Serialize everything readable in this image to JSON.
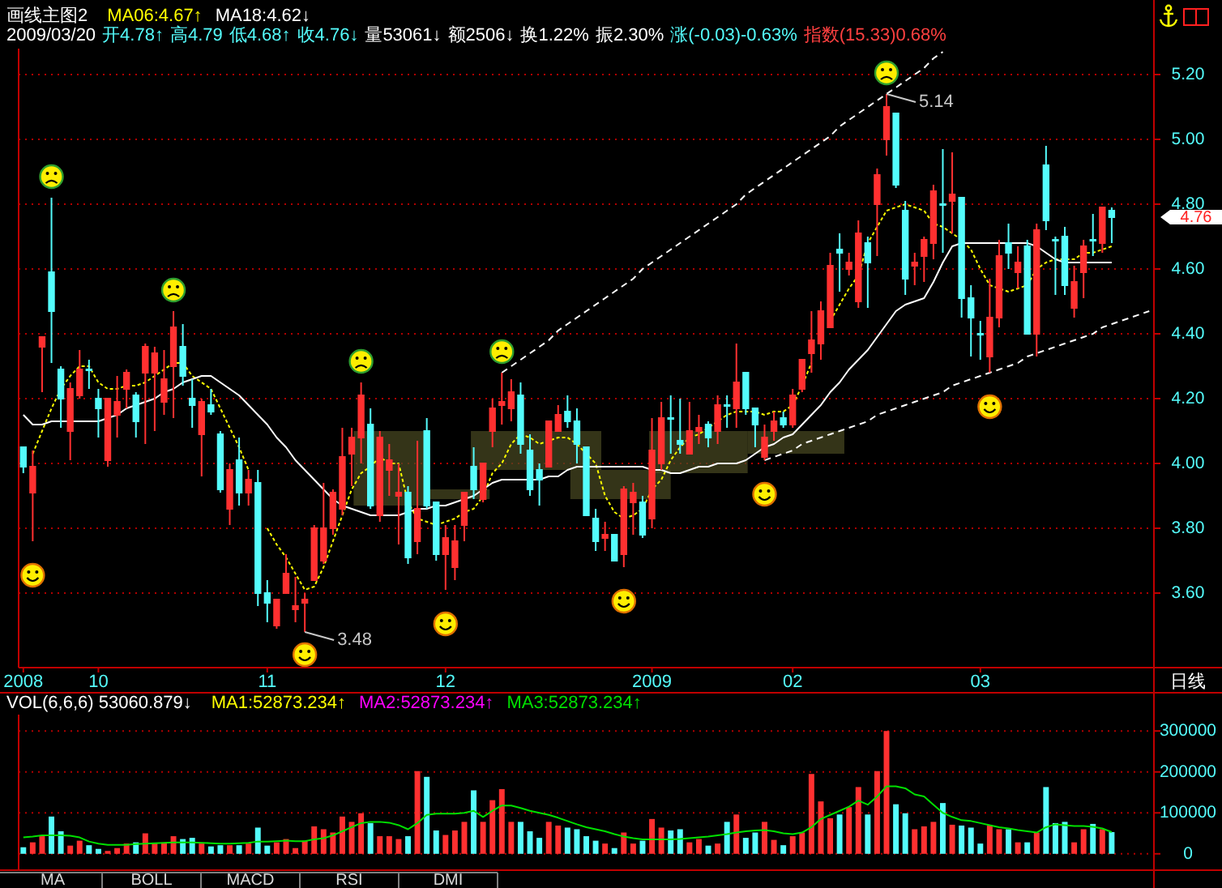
{
  "chart_data": [
    {
      "type": "candlestick",
      "title": "画线主图2",
      "xlabel": "日线",
      "legend": "top left",
      "grid": "y",
      "categories": [
        "2008",
        null,
        null,
        null,
        null,
        null,
        null,
        null,
        "10",
        null,
        null,
        null,
        null,
        null,
        null,
        null,
        null,
        null,
        null,
        null,
        null,
        null,
        null,
        null,
        null,
        null,
        "11",
        null,
        null,
        null,
        null,
        null,
        null,
        null,
        null,
        null,
        null,
        null,
        null,
        null,
        null,
        null,
        null,
        null,
        null,
        "12",
        null,
        null,
        null,
        null,
        null,
        null,
        null,
        null,
        null,
        null,
        null,
        null,
        null,
        null,
        null,
        null,
        null,
        null,
        null,
        null,
        null,
        "2009",
        null,
        null,
        null,
        null,
        null,
        null,
        null,
        null,
        null,
        null,
        null,
        null,
        null,
        null,
        "02",
        null,
        null,
        null,
        null,
        null,
        null,
        null,
        null,
        null,
        null,
        null,
        null,
        null,
        null,
        null,
        null,
        null,
        null,
        null,
        "03",
        null,
        null,
        null,
        null,
        null,
        null,
        null,
        null,
        null,
        null,
        null,
        null,
        null,
        null,
        null,
        null,
        null,
        null
      ],
      "ohlc": [
        [
          4.05,
          4.05,
          3.97,
          3.99
        ],
        [
          3.91,
          4.04,
          3.76,
          3.99
        ],
        [
          4.36,
          4.39,
          4.22,
          4.39
        ],
        [
          4.59,
          4.82,
          4.31,
          4.47
        ],
        [
          4.29,
          4.3,
          4.11,
          4.2
        ],
        [
          4.1,
          4.25,
          4.01,
          4.23
        ],
        [
          4.21,
          4.35,
          4.2,
          4.29
        ],
        [
          4.29,
          4.32,
          4.23,
          4.29
        ],
        [
          4.2,
          4.23,
          4.08,
          4.17
        ],
        [
          4.01,
          4.2,
          3.99,
          4.2
        ],
        [
          4.15,
          4.27,
          4.08,
          4.19
        ],
        [
          4.23,
          4.29,
          4.17,
          4.28
        ],
        [
          4.21,
          4.22,
          4.08,
          4.13
        ],
        [
          4.28,
          4.37,
          4.06,
          4.36
        ],
        [
          4.28,
          4.36,
          4.1,
          4.34
        ],
        [
          4.19,
          4.35,
          4.15,
          4.26
        ],
        [
          4.3,
          4.47,
          4.14,
          4.42
        ],
        [
          4.36,
          4.43,
          4.24,
          4.27
        ],
        [
          4.2,
          4.26,
          4.11,
          4.18
        ],
        [
          4.09,
          4.2,
          3.96,
          4.19
        ],
        [
          4.18,
          4.23,
          4.15,
          4.16
        ],
        [
          4.09,
          4.1,
          3.91,
          3.92
        ],
        [
          3.86,
          4.0,
          3.81,
          3.98
        ],
        [
          4.01,
          4.08,
          3.87,
          3.91
        ],
        [
          3.91,
          3.98,
          3.87,
          3.95
        ],
        [
          3.94,
          3.98,
          3.56,
          3.6
        ],
        [
          3.6,
          3.64,
          3.51,
          3.57
        ],
        [
          3.5,
          3.58,
          3.49,
          3.58
        ],
        [
          3.6,
          3.72,
          3.6,
          3.66
        ],
        [
          3.55,
          3.65,
          3.51,
          3.56
        ],
        [
          3.57,
          3.6,
          3.48,
          3.58
        ],
        [
          3.64,
          3.81,
          3.64,
          3.8
        ],
        [
          3.7,
          3.94,
          3.69,
          3.8
        ],
        [
          3.8,
          3.92,
          3.78,
          3.91
        ],
        [
          3.86,
          4.11,
          3.84,
          4.02
        ],
        [
          4.03,
          4.11,
          3.93,
          4.08
        ],
        [
          4.08,
          4.25,
          4.0,
          4.21
        ],
        [
          4.12,
          4.17,
          3.86,
          3.87
        ],
        [
          3.84,
          4.1,
          3.82,
          4.08
        ],
        [
          3.98,
          4.06,
          3.9,
          4.01
        ],
        [
          3.9,
          4.0,
          3.75,
          3.91
        ],
        [
          3.91,
          3.93,
          3.69,
          3.71
        ],
        [
          3.76,
          4.07,
          3.72,
          3.86
        ],
        [
          4.1,
          4.14,
          3.86,
          3.87
        ],
        [
          3.88,
          3.88,
          3.7,
          3.72
        ],
        [
          3.72,
          3.81,
          3.61,
          3.77
        ],
        [
          3.68,
          3.81,
          3.64,
          3.76
        ],
        [
          3.81,
          3.91,
          3.76,
          3.91
        ],
        [
          3.99,
          4.05,
          3.89,
          3.92
        ],
        [
          3.89,
          4.0,
          3.88,
          4.0
        ],
        [
          4.1,
          4.2,
          4.05,
          4.17
        ],
        [
          4.18,
          4.28,
          4.12,
          4.19
        ],
        [
          4.17,
          4.26,
          4.13,
          4.22
        ],
        [
          4.21,
          4.25,
          4.03,
          4.06
        ],
        [
          4.04,
          4.09,
          3.9,
          3.92
        ],
        [
          3.98,
          4.0,
          3.87,
          3.95
        ],
        [
          3.99,
          4.13,
          3.99,
          4.13
        ],
        [
          4.1,
          4.18,
          4.1,
          4.15
        ],
        [
          4.16,
          4.21,
          4.11,
          4.13
        ],
        [
          4.13,
          4.17,
          4.0,
          4.06
        ],
        [
          4.05,
          4.05,
          3.84,
          3.84
        ],
        [
          3.83,
          3.86,
          3.73,
          3.76
        ],
        [
          3.77,
          3.82,
          3.73,
          3.78
        ],
        [
          3.78,
          3.78,
          3.7,
          3.7
        ],
        [
          3.72,
          3.93,
          3.68,
          3.92
        ],
        [
          3.88,
          3.94,
          3.78,
          3.91
        ],
        [
          3.88,
          3.9,
          3.77,
          3.78
        ],
        [
          3.83,
          4.14,
          3.8,
          4.04
        ],
        [
          4.0,
          4.19,
          3.98,
          4.14
        ],
        [
          4.14,
          4.21,
          4.03,
          4.14
        ],
        [
          4.07,
          4.2,
          4.03,
          4.06
        ],
        [
          4.03,
          4.19,
          4.03,
          4.1
        ],
        [
          4.1,
          4.15,
          4.06,
          4.11
        ],
        [
          4.12,
          4.13,
          4.05,
          4.08
        ],
        [
          4.1,
          4.21,
          4.06,
          4.18
        ],
        [
          4.18,
          4.21,
          4.11,
          4.18
        ],
        [
          4.17,
          4.37,
          4.11,
          4.25
        ],
        [
          4.28,
          4.28,
          4.15,
          4.17
        ],
        [
          4.17,
          4.17,
          4.05,
          4.12
        ],
        [
          4.02,
          4.12,
          4.01,
          4.08
        ],
        [
          4.1,
          4.16,
          4.07,
          4.13
        ],
        [
          4.14,
          4.16,
          4.11,
          4.12
        ],
        [
          4.12,
          4.23,
          4.11,
          4.21
        ],
        [
          4.23,
          4.32,
          4.22,
          4.32
        ],
        [
          4.34,
          4.47,
          4.28,
          4.38
        ],
        [
          4.37,
          4.5,
          4.32,
          4.47
        ],
        [
          4.42,
          4.65,
          4.42,
          4.61
        ],
        [
          4.66,
          4.71,
          4.53,
          4.65
        ],
        [
          4.6,
          4.65,
          4.58,
          4.62
        ],
        [
          4.5,
          4.75,
          4.48,
          4.71
        ],
        [
          4.68,
          4.7,
          4.48,
          4.62
        ],
        [
          4.8,
          4.91,
          4.64,
          4.89
        ],
        [
          5.0,
          5.14,
          4.95,
          5.1
        ],
        [
          5.08,
          5.08,
          4.85,
          4.86
        ],
        [
          4.78,
          4.81,
          4.52,
          4.57
        ],
        [
          4.61,
          4.65,
          4.55,
          4.62
        ],
        [
          4.64,
          4.7,
          4.56,
          4.69
        ],
        [
          4.68,
          4.86,
          4.63,
          4.84
        ],
        [
          4.8,
          4.97,
          4.65,
          4.8
        ],
        [
          4.81,
          4.96,
          4.71,
          4.83
        ],
        [
          4.82,
          4.82,
          4.45,
          4.51
        ],
        [
          4.51,
          4.55,
          4.33,
          4.45
        ],
        [
          4.4,
          4.44,
          4.32,
          4.4
        ],
        [
          4.33,
          4.57,
          4.28,
          4.45
        ],
        [
          4.45,
          4.69,
          4.42,
          4.64
        ],
        [
          4.68,
          4.74,
          4.6,
          4.65
        ],
        [
          4.59,
          4.67,
          4.54,
          4.62
        ],
        [
          4.67,
          4.69,
          4.4,
          4.4
        ],
        [
          4.4,
          4.74,
          4.33,
          4.72
        ],
        [
          4.92,
          4.98,
          4.72,
          4.75
        ],
        [
          4.69,
          4.7,
          4.52,
          4.69
        ],
        [
          4.7,
          4.73,
          4.52,
          4.55
        ],
        [
          4.48,
          4.61,
          4.45,
          4.56
        ],
        [
          4.59,
          4.69,
          4.51,
          4.67
        ],
        [
          4.69,
          4.77,
          4.64,
          4.69
        ],
        [
          4.68,
          4.79,
          4.65,
          4.79
        ],
        [
          4.78,
          4.79,
          4.68,
          4.76
        ],
        null,
        null,
        null,
        null
      ],
      "colors": [
        "#54fcfc",
        "#ff3030",
        "#ff3030",
        "#54fcfc",
        "#54fcfc",
        "#ff3030",
        "#ff3030",
        "#54fcfc",
        "#54fcfc",
        "#ff3030",
        "#ff3030",
        "#ff3030",
        "#54fcfc",
        "#ff3030",
        "#ff3030",
        "#ff3030",
        "#ff3030",
        "#54fcfc",
        "#54fcfc",
        "#ff3030",
        "#54fcfc",
        "#54fcfc",
        "#ff3030",
        "#54fcfc",
        "#ff3030",
        "#54fcfc",
        "#54fcfc",
        "#ff3030",
        "#ff3030",
        "#ff3030",
        "#ff3030",
        "#ff3030",
        "#ff3030",
        "#ff3030",
        "#ff3030",
        "#ff3030",
        "#ff3030",
        "#54fcfc",
        "#ff3030",
        "#ff3030",
        "#ff3030",
        "#54fcfc",
        "#ff3030",
        "#54fcfc",
        "#54fcfc",
        "#ff3030",
        "#ff3030",
        "#ff3030",
        "#54fcfc",
        "#ff3030",
        "#ff3030",
        "#ff3030",
        "#ff3030",
        "#54fcfc",
        "#54fcfc",
        "#54fcfc",
        "#ff3030",
        "#ff3030",
        "#54fcfc",
        "#54fcfc",
        "#54fcfc",
        "#54fcfc",
        "#ff3030",
        "#54fcfc",
        "#ff3030",
        "#ff3030",
        "#54fcfc",
        "#ff3030",
        "#ff3030",
        "#54fcfc",
        "#54fcfc",
        "#ff3030",
        "#ff3030",
        "#54fcfc",
        "#ff3030",
        "#54fcfc",
        "#ff3030",
        "#54fcfc",
        "#54fcfc",
        "#ff3030",
        "#ff3030",
        "#54fcfc",
        "#ff3030",
        "#ff3030",
        "#ff3030",
        "#ff3030",
        "#ff3030",
        "#54fcfc",
        "#ff3030",
        "#ff3030",
        "#54fcfc",
        "#ff3030",
        "#ff3030",
        "#54fcfc",
        "#54fcfc",
        "#ff3030",
        "#ff3030",
        "#ff3030",
        "#54fcfc",
        "#ff3030",
        "#54fcfc",
        "#54fcfc",
        "#54fcfc",
        "#ff3030",
        "#ff3030",
        "#54fcfc",
        "#ff3030",
        "#54fcfc",
        "#ff3030",
        "#54fcfc",
        "#54fcfc",
        "#54fcfc",
        "#ff3030",
        "#ff3030",
        "#54fcfc",
        "#ff3030",
        "#54fcfc",
        null,
        null,
        null,
        null
      ],
      "series": [
        {
          "name": "MA06:4.67↑",
          "type": "line",
          "color": "#ffff00",
          "line_style": "dotted",
          "values": [
            null,
            4.03,
            4.1,
            4.17,
            4.23,
            4.27,
            4.3,
            4.3,
            4.25,
            4.23,
            4.23,
            4.24,
            4.24,
            4.25,
            4.27,
            4.29,
            4.31,
            4.31,
            4.27,
            4.25,
            4.23,
            4.17,
            4.11,
            4.05,
            3.98,
            null,
            3.8,
            3.75,
            3.71,
            3.66,
            3.61,
            3.62,
            3.68,
            3.76,
            3.84,
            3.92,
            3.97,
            3.99,
            4.02,
            4.0,
            4.0,
            3.88,
            3.83,
            3.82,
            3.81,
            3.82,
            3.83,
            3.85,
            3.86,
            3.9,
            3.97,
            4.0,
            4.06,
            4.09,
            4.08,
            4.06,
            4.07,
            4.08,
            4.08,
            4.06,
            4.03,
            4.0,
            3.9,
            3.85,
            3.83,
            3.84,
            3.86,
            3.92,
            3.95,
            4.01,
            4.05,
            4.08,
            4.09,
            4.11,
            4.13,
            4.15,
            4.16,
            4.16,
            4.16,
            4.15,
            4.16,
            4.16,
            4.18,
            4.24,
            4.31,
            null,
            4.44,
            4.49,
            4.54,
            4.58,
            4.68,
            4.73,
            4.78,
            4.79,
            4.8,
            4.79,
            4.78,
            4.74,
            4.73,
            4.71,
            4.69,
            4.66,
            4.6,
            4.55,
            4.54,
            4.53,
            4.54,
            4.55,
            4.6,
            4.62,
            4.63,
            4.63,
            4.63,
            4.65,
            4.65,
            4.66,
            4.67,
            null,
            null,
            null,
            null
          ]
        },
        {
          "name": "MA18:4.62↓",
          "type": "line",
          "color": "#ffffff",
          "values": [
            4.15,
            4.12,
            4.12,
            4.13,
            4.13,
            4.13,
            4.13,
            4.13,
            4.13,
            4.14,
            4.15,
            4.17,
            4.18,
            4.19,
            4.2,
            4.22,
            4.23,
            4.25,
            4.26,
            4.27,
            4.27,
            4.25,
            4.23,
            4.21,
            4.18,
            4.15,
            4.12,
            4.08,
            4.05,
            4.01,
            3.98,
            3.95,
            3.92,
            3.89,
            3.87,
            3.86,
            3.85,
            3.84,
            3.84,
            3.84,
            3.84,
            3.85,
            3.86,
            3.86,
            3.87,
            3.87,
            3.88,
            3.89,
            3.9,
            3.92,
            3.94,
            3.95,
            3.95,
            3.95,
            3.95,
            3.95,
            3.96,
            3.96,
            3.98,
            3.99,
            3.99,
            3.99,
            3.99,
            3.99,
            3.99,
            3.99,
            3.99,
            3.98,
            3.98,
            3.97,
            3.97,
            3.98,
            3.99,
            3.99,
            4.0,
            4.0,
            4.0,
            4.01,
            4.03,
            4.05,
            4.06,
            4.08,
            4.09,
            4.12,
            4.15,
            4.18,
            4.22,
            4.25,
            4.29,
            4.32,
            4.35,
            4.39,
            4.43,
            4.47,
            4.49,
            4.5,
            4.51,
            4.56,
            4.62,
            4.67,
            4.68,
            4.68,
            4.68,
            4.68,
            4.68,
            4.68,
            4.68,
            4.68,
            4.67,
            4.65,
            4.63,
            4.62,
            4.62,
            4.62,
            4.62,
            4.62,
            4.62,
            null,
            null,
            null,
            null
          ]
        },
        {
          "type": "line",
          "color": "#ffffff",
          "line_style": "dashed",
          "values": [
            null,
            null,
            null,
            null,
            null,
            null,
            null,
            null,
            null,
            null,
            null,
            null,
            null,
            null,
            null,
            null,
            null,
            null,
            null,
            null,
            null,
            null,
            null,
            null,
            null,
            null,
            null,
            null,
            null,
            null,
            null,
            null,
            null,
            null,
            null,
            null,
            null,
            null,
            null,
            null,
            null,
            null,
            null,
            null,
            null,
            null,
            null,
            null,
            null,
            null,
            null,
            4.28,
            4.3,
            4.32,
            4.34,
            4.36,
            4.38,
            4.41,
            4.43,
            4.45,
            4.47,
            4.49,
            4.51,
            4.53,
            4.55,
            4.57,
            4.6,
            4.62,
            4.64,
            4.66,
            4.68,
            4.7,
            4.72,
            4.74,
            4.76,
            4.78,
            4.8,
            4.83,
            4.85,
            4.87,
            4.89,
            4.91,
            4.93,
            4.95,
            4.97,
            4.99,
            5.01,
            5.04,
            5.06,
            5.08,
            5.1,
            5.12,
            5.14,
            5.16,
            5.18,
            5.2,
            5.22,
            5.25,
            5.27,
            null,
            null,
            null,
            null,
            null,
            null,
            null,
            null,
            null,
            null,
            null,
            null,
            null,
            null,
            null,
            null,
            null,
            null,
            null,
            null,
            null,
            null
          ]
        },
        {
          "type": "line",
          "color": "#ffffff",
          "line_style": "dashed",
          "values": [
            null,
            null,
            null,
            null,
            null,
            null,
            null,
            null,
            null,
            null,
            null,
            null,
            null,
            null,
            null,
            null,
            null,
            null,
            null,
            null,
            null,
            null,
            null,
            null,
            null,
            null,
            null,
            null,
            null,
            null,
            null,
            null,
            null,
            null,
            null,
            null,
            null,
            null,
            null,
            null,
            null,
            null,
            null,
            null,
            null,
            null,
            null,
            null,
            null,
            null,
            null,
            null,
            null,
            null,
            null,
            null,
            null,
            null,
            null,
            null,
            null,
            null,
            null,
            null,
            null,
            null,
            null,
            null,
            null,
            null,
            null,
            null,
            null,
            null,
            null,
            null,
            null,
            null,
            null,
            4.01,
            4.02,
            4.03,
            4.04,
            4.06,
            4.07,
            4.08,
            4.09,
            4.1,
            4.11,
            4.12,
            4.13,
            4.15,
            4.16,
            4.17,
            4.18,
            4.19,
            4.2,
            4.21,
            4.22,
            4.24,
            4.25,
            4.26,
            4.27,
            4.28,
            4.29,
            4.3,
            4.31,
            4.33,
            4.34,
            4.35,
            4.36,
            4.37,
            4.38,
            4.39,
            4.4,
            4.42,
            4.43,
            4.44,
            4.45,
            4.46,
            4.47
          ]
        }
      ],
      "ylim": [
        3.37,
        5.28
      ],
      "yticks": [
        {
          "value": 3.6,
          "label": "3.60"
        },
        {
          "value": 3.8,
          "label": "3.80"
        },
        {
          "value": 4.0,
          "label": "4.00"
        },
        {
          "value": 4.2,
          "label": "4.20"
        },
        {
          "value": 4.4,
          "label": "4.40"
        },
        {
          "value": 4.6,
          "label": "4.60"
        },
        {
          "value": 4.8,
          "label": "4.80"
        },
        {
          "value": 5.0,
          "label": "5.00"
        },
        {
          "value": 5.2,
          "label": "5.20"
        }
      ],
      "annotations": [
        "2009/03/20",
        "开4.78↑",
        "高4.79",
        "低4.68↑",
        "收4.76↓",
        "量53061↓",
        "额2506↓",
        "换1.22%",
        "振2.30%",
        "涨(-0.03)-0.63%",
        "指数(15.33)0.68%",
        "3.48",
        "5.14",
        "4.76"
      ]
    },
    {
      "type": "bar",
      "title": "VOL(6,6,6) 53060.879↓",
      "legend": "top left",
      "grid": "y",
      "tick_labels": "y",
      "categories": [
        "2008",
        null,
        null,
        null,
        null,
        null,
        null,
        null,
        "10",
        null,
        null,
        null,
        null,
        null,
        null,
        null,
        null,
        null,
        null,
        null,
        null,
        null,
        null,
        null,
        null,
        null,
        "11",
        null,
        null,
        null,
        null,
        null,
        null,
        null,
        null,
        null,
        null,
        null,
        null,
        null,
        null,
        null,
        null,
        null,
        null,
        "12",
        null,
        null,
        null,
        null,
        null,
        null,
        null,
        null,
        null,
        null,
        null,
        null,
        null,
        null,
        null,
        null,
        null,
        null,
        null,
        null,
        null,
        "2009",
        null,
        null,
        null,
        null,
        null,
        null,
        null,
        null,
        null,
        null,
        null,
        null,
        null,
        null,
        "02",
        null,
        null,
        null,
        null,
        null,
        null,
        null,
        null,
        null,
        null,
        null,
        null,
        null,
        null,
        null,
        null,
        null,
        null,
        null,
        "03",
        null,
        null,
        null,
        null,
        null,
        null,
        null,
        null,
        null,
        null,
        null,
        null,
        null,
        null,
        null,
        null,
        null,
        null
      ],
      "values": [
        16000,
        28000,
        43000,
        91000,
        55000,
        20000,
        32000,
        21000,
        12000,
        7000,
        14000,
        25000,
        28000,
        50000,
        25000,
        27000,
        43000,
        36000,
        39000,
        25000,
        18000,
        21000,
        21000,
        21000,
        25000,
        64000,
        20000,
        28000,
        36000,
        14000,
        32000,
        67000,
        60000,
        52000,
        91000,
        78000,
        99000,
        75000,
        43000,
        43000,
        36000,
        43000,
        202000,
        188000,
        57000,
        46000,
        57000,
        78000,
        155000,
        78000,
        131000,
        158000,
        78000,
        78000,
        55000,
        39000,
        78000,
        69000,
        64000,
        60000,
        43000,
        32000,
        25000,
        14000,
        52000,
        25000,
        32000,
        85000,
        64000,
        57000,
        60000,
        28000,
        36000,
        20000,
        25000,
        78000,
        96000,
        39000,
        52000,
        78000,
        34000,
        21000,
        43000,
        52000,
        195000,
        128000,
        87000,
        96000,
        114000,
        163000,
        96000,
        202000,
        300000,
        121000,
        99000,
        60000,
        67000,
        78000,
        124000,
        71000,
        69000,
        64000,
        25000,
        69000,
        60000,
        60000,
        28000,
        28000,
        52000,
        163000,
        75000,
        78000,
        28000,
        60000,
        73000,
        60000,
        53000,
        null,
        null,
        null,
        null
      ],
      "colors": [
        "#54fcfc",
        "#ff3030",
        "#ff3030",
        "#54fcfc",
        "#54fcfc",
        "#ff3030",
        "#ff3030",
        "#54fcfc",
        "#54fcfc",
        "#ff3030",
        "#ff3030",
        "#ff3030",
        "#54fcfc",
        "#ff3030",
        "#ff3030",
        "#ff3030",
        "#ff3030",
        "#54fcfc",
        "#54fcfc",
        "#ff3030",
        "#54fcfc",
        "#54fcfc",
        "#ff3030",
        "#54fcfc",
        "#ff3030",
        "#54fcfc",
        "#54fcfc",
        "#ff3030",
        "#ff3030",
        "#ff3030",
        "#ff3030",
        "#ff3030",
        "#ff3030",
        "#ff3030",
        "#ff3030",
        "#ff3030",
        "#ff3030",
        "#54fcfc",
        "#ff3030",
        "#ff3030",
        "#ff3030",
        "#54fcfc",
        "#ff3030",
        "#54fcfc",
        "#54fcfc",
        "#ff3030",
        "#ff3030",
        "#ff3030",
        "#54fcfc",
        "#ff3030",
        "#ff3030",
        "#ff3030",
        "#ff3030",
        "#54fcfc",
        "#54fcfc",
        "#54fcfc",
        "#ff3030",
        "#ff3030",
        "#54fcfc",
        "#54fcfc",
        "#54fcfc",
        "#54fcfc",
        "#ff3030",
        "#54fcfc",
        "#ff3030",
        "#ff3030",
        "#54fcfc",
        "#ff3030",
        "#ff3030",
        "#54fcfc",
        "#54fcfc",
        "#ff3030",
        "#ff3030",
        "#54fcfc",
        "#ff3030",
        "#54fcfc",
        "#ff3030",
        "#54fcfc",
        "#54fcfc",
        "#ff3030",
        "#ff3030",
        "#54fcfc",
        "#ff3030",
        "#ff3030",
        "#ff3030",
        "#ff3030",
        "#ff3030",
        "#54fcfc",
        "#ff3030",
        "#ff3030",
        "#54fcfc",
        "#ff3030",
        "#ff3030",
        "#54fcfc",
        "#54fcfc",
        "#ff3030",
        "#ff3030",
        "#ff3030",
        "#54fcfc",
        "#ff3030",
        "#54fcfc",
        "#54fcfc",
        "#54fcfc",
        "#ff3030",
        "#ff3030",
        "#54fcfc",
        "#ff3030",
        "#54fcfc",
        "#ff3030",
        "#54fcfc",
        "#54fcfc",
        "#54fcfc",
        "#ff3030",
        "#ff3030",
        "#54fcfc",
        "#ff3030",
        "#54fcfc",
        null,
        null,
        null,
        null
      ],
      "series": [
        {
          "name": "MA1:52873.234↑",
          "type": "line",
          "color": "#ffff00",
          "values": [
            null,
            null,
            null,
            null,
            null,
            null,
            null,
            null,
            null,
            null,
            null,
            null,
            null,
            null,
            null,
            null,
            null,
            null,
            null,
            null,
            null,
            null,
            null,
            null,
            null,
            null,
            null,
            null,
            null,
            null,
            null,
            null,
            null,
            null,
            null,
            null,
            null,
            null,
            null,
            null,
            null,
            null,
            null,
            null,
            null,
            null,
            null,
            null,
            null,
            null,
            null,
            null,
            null,
            null,
            null,
            null,
            null,
            null,
            null,
            null,
            null,
            null,
            null,
            null,
            null,
            null,
            null,
            null,
            null,
            null,
            null,
            null,
            null,
            null,
            null,
            null,
            null,
            null,
            null,
            null,
            null,
            null,
            null,
            null,
            null,
            null,
            null,
            null,
            null,
            null,
            null,
            null,
            null,
            null,
            null,
            null,
            null,
            null,
            null,
            null,
            null,
            null,
            null,
            null,
            null,
            null,
            null,
            null,
            null,
            null,
            null,
            null,
            null,
            null,
            null,
            null,
            null,
            null,
            null,
            null,
            null
          ]
        },
        {
          "name": "MA2:52873.234↑",
          "type": "line",
          "color": "#ff00ff",
          "values": [
            null,
            null,
            null,
            null,
            null,
            null,
            null,
            null,
            null,
            null,
            null,
            null,
            null,
            null,
            null,
            null,
            null,
            null,
            null,
            null,
            null,
            null,
            null,
            null,
            null,
            null,
            null,
            null,
            null,
            null,
            null,
            null,
            null,
            null,
            null,
            null,
            null,
            null,
            null,
            null,
            null,
            null,
            null,
            null,
            null,
            null,
            null,
            null,
            null,
            null,
            null,
            null,
            null,
            null,
            null,
            null,
            null,
            null,
            null,
            null,
            null,
            null,
            null,
            null,
            null,
            null,
            null,
            null,
            null,
            null,
            null,
            null,
            null,
            null,
            null,
            null,
            null,
            null,
            null,
            null,
            null,
            null,
            null,
            null,
            null,
            null,
            null,
            null,
            null,
            null,
            null,
            null,
            null,
            null,
            null,
            null,
            null,
            null,
            null,
            null,
            null,
            null,
            null,
            null,
            null,
            null,
            null,
            null,
            null,
            null,
            null,
            null,
            null,
            null,
            null,
            null,
            null,
            null,
            null,
            null,
            null
          ]
        },
        {
          "name": "MA3:52873.234↑",
          "type": "line",
          "color": "#00e000",
          "values": [
            40000,
            42000,
            45000,
            45000,
            45000,
            44000,
            40000,
            30000,
            25000,
            22000,
            22000,
            22000,
            24000,
            25000,
            26000,
            27000,
            28000,
            28000,
            28000,
            27000,
            26000,
            25000,
            25000,
            26000,
            27000,
            30000,
            30000,
            31000,
            32000,
            31000,
            31000,
            35000,
            38000,
            45000,
            55000,
            65000,
            75000,
            78000,
            78000,
            76000,
            70000,
            60000,
            75000,
            95000,
            98000,
            98000,
            98000,
            100000,
            105000,
            90000,
            105000,
            118000,
            118000,
            112000,
            105000,
            100000,
            95000,
            88000,
            80000,
            72000,
            65000,
            60000,
            55000,
            48000,
            42000,
            38000,
            35000,
            35000,
            35000,
            35000,
            36000,
            38000,
            40000,
            42000,
            45000,
            48000,
            52000,
            55000,
            57000,
            58000,
            55000,
            50000,
            48000,
            52000,
            65000,
            85000,
            95000,
            105000,
            115000,
            130000,
            120000,
            140000,
            165000,
            165000,
            160000,
            145000,
            140000,
            120000,
            100000,
            90000,
            82000,
            80000,
            75000,
            70000,
            65000,
            62000,
            58000,
            55000,
            52000,
            65000,
            72000,
            70000,
            68000,
            68000,
            66000,
            62000,
            53000,
            null,
            null,
            null,
            null
          ]
        }
      ],
      "ylim": [
        -40000,
        340000
      ],
      "yticks": [
        0,
        100000,
        200000,
        300000
      ],
      "annotations": [
        "MA",
        "BOLL",
        "MACD",
        "RSI",
        "DMI"
      ]
    }
  ]
}
